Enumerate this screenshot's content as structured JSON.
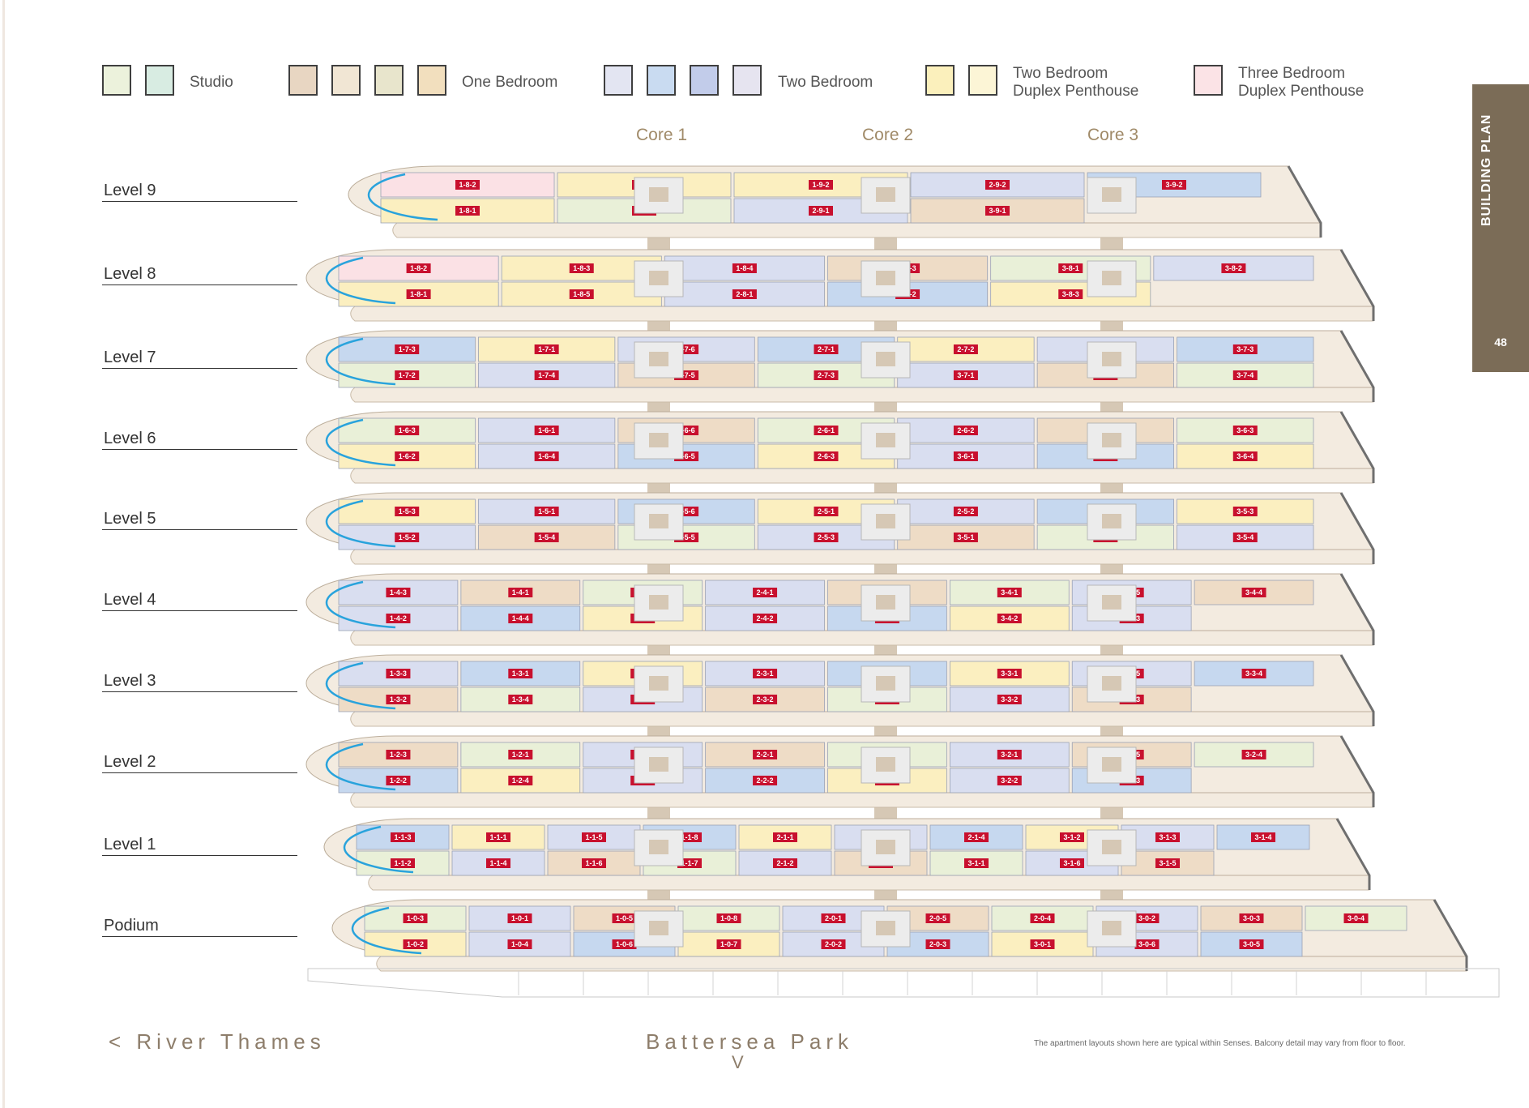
{
  "legend": [
    {
      "label": "Studio",
      "swatches": [
        "#ecf2dc",
        "#d8ece2"
      ]
    },
    {
      "label": "One Bedroom",
      "swatches": [
        "#e8d6c2",
        "#f1e6d4",
        "#e8e5cc",
        "#f2dfbe"
      ]
    },
    {
      "label": "Two Bedroom",
      "swatches": [
        "#e3e5f2",
        "#c9dbf1",
        "#c2ccea",
        "#e6e4f0"
      ]
    },
    {
      "label": "Two Bedroom\nDuplex Penthouse",
      "swatches": [
        "#fbf0bc",
        "#fcf5d6"
      ]
    },
    {
      "label": "Three Bedroom\nDuplex Penthouse",
      "swatches": [
        "#fbe3e6"
      ]
    }
  ],
  "cores": [
    "Core 1",
    "Core 2",
    "Core 3"
  ],
  "levels": [
    "Level 9",
    "Level 8",
    "Level 7",
    "Level 6",
    "Level 5",
    "Level 4",
    "Level 3",
    "Level 2",
    "Level 1",
    "Podium"
  ],
  "side_tab": {
    "title": "BUILDING PLAN",
    "page": "48"
  },
  "footer": {
    "river": "< River Thames",
    "park": "Battersea Park",
    "park_arrow": "V",
    "note": "The apartment layouts shown here are typical within Senses. Balcony detail may vary from floor to floor."
  },
  "colors": {
    "studio": "#e9f0d8",
    "one_bed": "#eedcc6",
    "two_bed": "#d9def0",
    "two_bed_b": "#c6d8ef",
    "penthouse2": "#fbefc0",
    "penthouse3": "#fbe1e5",
    "slab": "#f3ebe0",
    "core": "#d6c8b5",
    "edge": "#6f6f6f",
    "glass": "#29a3dc",
    "unit_tag": "#c8102e"
  },
  "floors": [
    {
      "units": [
        "1-8-2",
        "1-8-1",
        "1-8-3",
        "1-9-1",
        "1-9-2",
        "2-9-1",
        "2-9-2",
        "3-9-1",
        "3-9-2"
      ]
    },
    {
      "units": [
        "1-8-2",
        "1-8-1",
        "1-8-3",
        "1-8-5",
        "1-8-4",
        "2-8-1",
        "2-8-3",
        "2-8-2",
        "3-8-1",
        "3-8-3",
        "3-8-2"
      ]
    },
    {
      "units": [
        "1-7-3",
        "1-7-2",
        "1-7-1",
        "1-7-4",
        "1-7-6",
        "1-7-5",
        "2-7-1",
        "2-7-3",
        "2-7-2",
        "3-7-1",
        "3-7-2",
        "3-7-5",
        "3-7-3",
        "3-7-4"
      ]
    },
    {
      "units": [
        "1-6-3",
        "1-6-2",
        "1-6-1",
        "1-6-4",
        "1-6-6",
        "1-6-5",
        "2-6-1",
        "2-6-3",
        "2-6-2",
        "3-6-1",
        "3-6-2",
        "3-6-5",
        "3-6-3",
        "3-6-4"
      ]
    },
    {
      "units": [
        "1-5-3",
        "1-5-2",
        "1-5-1",
        "1-5-4",
        "1-5-6",
        "1-5-5",
        "2-5-1",
        "2-5-3",
        "2-5-2",
        "3-5-1",
        "3-5-2",
        "3-5-5",
        "3-5-3",
        "3-5-4"
      ]
    },
    {
      "units": [
        "1-4-3",
        "1-4-2",
        "1-4-1",
        "1-4-4",
        "1-4-6",
        "1-4-5",
        "2-4-1",
        "2-4-2",
        "2-4-4",
        "2-4-3",
        "3-4-1",
        "3-4-2",
        "3-4-5",
        "3-4-3",
        "3-4-4"
      ]
    },
    {
      "units": [
        "1-3-3",
        "1-3-2",
        "1-3-1",
        "1-3-4",
        "1-3-6",
        "1-3-5",
        "2-3-1",
        "2-3-2",
        "2-3-4",
        "2-3-3",
        "3-3-1",
        "3-3-2",
        "3-3-5",
        "3-3-3",
        "3-3-4"
      ]
    },
    {
      "units": [
        "1-2-3",
        "1-2-2",
        "1-2-1",
        "1-2-4",
        "1-2-6",
        "1-2-5",
        "2-2-1",
        "2-2-2",
        "2-2-4",
        "2-2-3",
        "3-2-1",
        "3-2-2",
        "3-2-5",
        "3-2-3",
        "3-2-4"
      ]
    },
    {
      "units": [
        "1-1-3",
        "1-1-2",
        "1-1-1",
        "1-1-4",
        "1-1-5",
        "1-1-6",
        "1-1-8",
        "1-1-7",
        "2-1-1",
        "2-1-2",
        "2-1-5",
        "2-1-3",
        "2-1-4",
        "3-1-1",
        "3-1-2",
        "3-1-6",
        "3-1-3",
        "3-1-5",
        "3-1-4"
      ]
    },
    {
      "units": [
        "1-0-3",
        "1-0-2",
        "1-0-1",
        "1-0-4",
        "1-0-5",
        "1-0-6",
        "1-0-8",
        "1-0-7",
        "2-0-1",
        "2-0-2",
        "2-0-5",
        "2-0-3",
        "2-0-4",
        "3-0-1",
        "3-0-2",
        "3-0-6",
        "3-0-3",
        "3-0-5",
        "3-0-4"
      ]
    }
  ]
}
